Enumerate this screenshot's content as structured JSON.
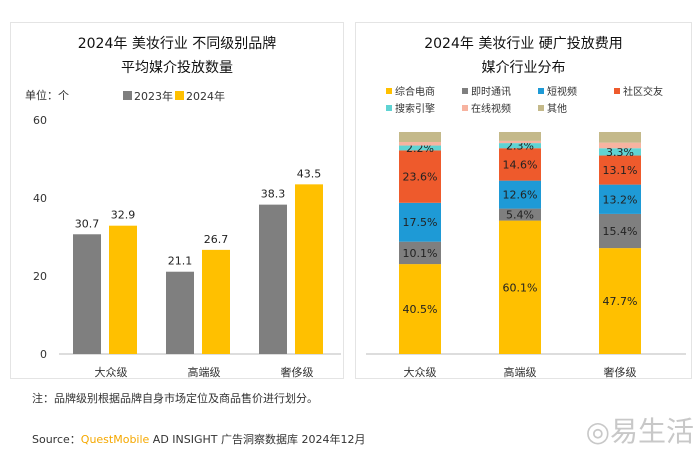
{
  "chart_data": [
    {
      "type": "bar",
      "title_line1": "2024年 美妆行业 不同级别品牌",
      "title_line2": "平均媒介投放数量",
      "unit_label": "单位：个",
      "categories": [
        "大众级",
        "高端级",
        "奢侈级"
      ],
      "series": [
        {
          "name": "2023年",
          "color": "#7f7f7f",
          "values": [
            30.7,
            21.1,
            38.3
          ]
        },
        {
          "name": "2024年",
          "color": "#ffc000",
          "values": [
            32.9,
            26.7,
            43.5
          ]
        }
      ],
      "ylim": [
        0,
        60
      ],
      "yticks": [
        0,
        20,
        40,
        60
      ],
      "legend": "top"
    },
    {
      "type": "bar",
      "stacked": true,
      "title_line1": "2024年 美妆行业 硬广投放费用",
      "title_line2": "媒介行业分布",
      "categories": [
        "大众级",
        "高端级",
        "奢侈级"
      ],
      "series": [
        {
          "name": "综合电商",
          "color": "#ffc000",
          "values": [
            40.5,
            60.1,
            47.7
          ]
        },
        {
          "name": "即时通讯",
          "color": "#7f7f7f",
          "values": [
            10.1,
            5.4,
            15.4
          ]
        },
        {
          "name": "短视频",
          "color": "#1e9ad6",
          "values": [
            17.5,
            12.6,
            13.2
          ]
        },
        {
          "name": "社区交友",
          "color": "#ee5a2c",
          "values": [
            23.6,
            14.6,
            13.1
          ]
        },
        {
          "name": "搜索引擎",
          "color": "#5fd3d3",
          "values": [
            2.2,
            2.3,
            3.3
          ]
        },
        {
          "name": "在线视频",
          "color": "#f7b3a0",
          "values": [
            1.6,
            1.0,
            2.5
          ]
        },
        {
          "name": "其他",
          "color": "#c4b98a",
          "values": [
            4.5,
            4.0,
            4.8
          ]
        }
      ],
      "labeled_series": [
        "综合电商",
        "即时通讯",
        "短视频",
        "社区交友",
        "搜索引擎"
      ],
      "ylim": [
        0,
        100
      ],
      "legend": "top"
    }
  ],
  "footer": {
    "note": "注：品牌级别根据品牌自身市场定位及商品售价进行划分。",
    "source_prefix": "Source：",
    "source_brand": "QuestMobile",
    "source_rest": " AD INSIGHT 广告洞察数据库 2024年12月",
    "logo": "易生活"
  }
}
